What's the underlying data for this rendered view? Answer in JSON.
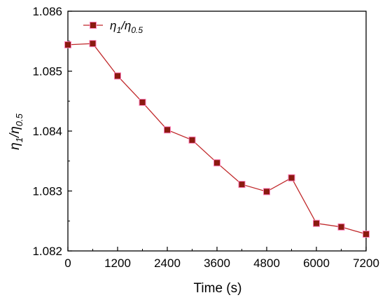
{
  "chart_data": {
    "type": "line",
    "xlabel": "Time (s)",
    "ylabel_main": "η",
    "ylabel_sub1": "1",
    "ylabel_slash": "/η",
    "ylabel_sub2": "0.5",
    "legend": {
      "name_main": "η",
      "name_sub1": "1",
      "name_slash": "/η",
      "name_sub2": "0.5",
      "position": "top-left"
    },
    "xlim": [
      0,
      7200
    ],
    "ylim": [
      1.082,
      1.086
    ],
    "xticks": [
      "0",
      "1200",
      "2400",
      "3600",
      "4800",
      "6000",
      "7200"
    ],
    "xtick_values": [
      0,
      1200,
      2400,
      3600,
      4800,
      6000,
      7200
    ],
    "yticks": [
      "1.082",
      "1.083",
      "1.084",
      "1.085",
      "1.086"
    ],
    "ytick_values": [
      1.082,
      1.083,
      1.084,
      1.085,
      1.086
    ],
    "grid": false,
    "series": [
      {
        "x": [
          0,
          600,
          1200,
          1800,
          2400,
          3000,
          3600,
          4200,
          4800,
          5400,
          6000,
          6600,
          7200
        ],
        "y": [
          1.08544,
          1.08546,
          1.08492,
          1.08448,
          1.08402,
          1.08385,
          1.08347,
          1.08311,
          1.08299,
          1.08322,
          1.08246,
          1.0824,
          1.08228
        ],
        "line_color": "#c0282a",
        "marker_color": "#8b1a10",
        "marker_edge": "#ff7db8"
      }
    ]
  }
}
